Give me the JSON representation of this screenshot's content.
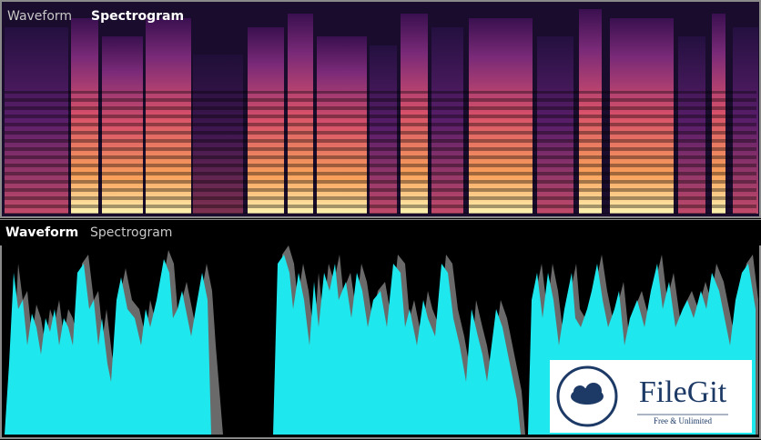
{
  "top_panel": {
    "tabs": [
      "Waveform",
      "Spectrogram"
    ]
  },
  "bottom_panel": {
    "tabs": [
      "Waveform",
      "Spectrogram"
    ]
  },
  "watermark": {
    "name": "FileGit",
    "tagline": "Free & Unlimited"
  }
}
